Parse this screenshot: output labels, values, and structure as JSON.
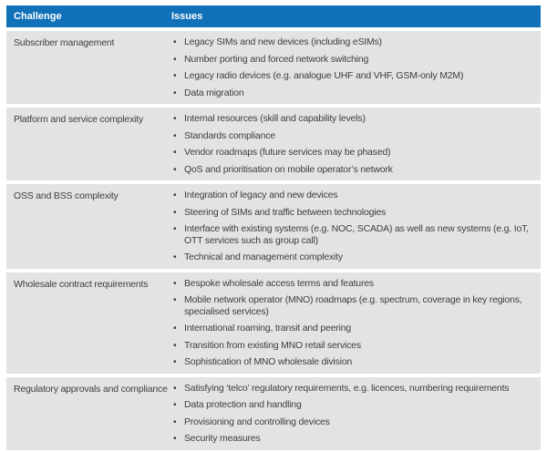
{
  "colors": {
    "header_bg": "#1070b8",
    "header_text": "#ffffff",
    "row_bg": "#e3e3e3",
    "body_text": "#3e3e3d"
  },
  "table": {
    "header": {
      "challenge": "Challenge",
      "issues": "Issues"
    },
    "rows": [
      {
        "challenge": "Subscriber management",
        "issues": [
          "Legacy SIMs and new devices (including eSIMs)",
          "Number porting and forced network switching",
          "Legacy radio devices (e.g. analogue UHF and VHF, GSM-only M2M)",
          "Data migration"
        ]
      },
      {
        "challenge": "Platform and service complexity",
        "issues": [
          "Internal resources (skill and capability levels)",
          "Standards compliance",
          "Vendor roadmaps (future services may be phased)",
          "QoS and prioritisation on mobile operator’s network"
        ]
      },
      {
        "challenge": "OSS and BSS complexity",
        "issues": [
          "Integration of legacy and new devices",
          "Steering of SIMs and traffic between technologies",
          "Interface with existing systems (e.g. NOC, SCADA) as well as new systems (e.g. IoT, OTT services such as group call)",
          "Technical and management complexity"
        ]
      },
      {
        "challenge": "Wholesale contract requirements",
        "issues": [
          "Bespoke wholesale access terms and features",
          "Mobile network operator (MNO) roadmaps (e.g. spectrum, coverage in key regions, specialised services)",
          "International roaming, transit and peering",
          "Transition from existing MNO retail services",
          "Sophistication of MNO wholesale division"
        ]
      },
      {
        "challenge": "Regulatory approvals and compliance",
        "issues": [
          "Satisfying ‘telco’ regulatory requirements, e.g. licences, numbering requirements",
          "Data protection and handling",
          "Provisioning and controlling devices",
          "Security measures"
        ]
      }
    ]
  }
}
